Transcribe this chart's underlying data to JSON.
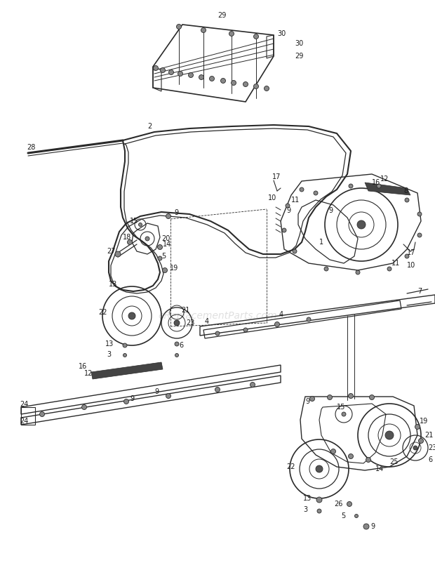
{
  "bg_color": "#ffffff",
  "line_color": "#2a2a2a",
  "label_color": "#1a1a1a",
  "watermark": "eReplacementParts.com",
  "fig_width": 6.2,
  "fig_height": 8.02,
  "dpi": 100
}
